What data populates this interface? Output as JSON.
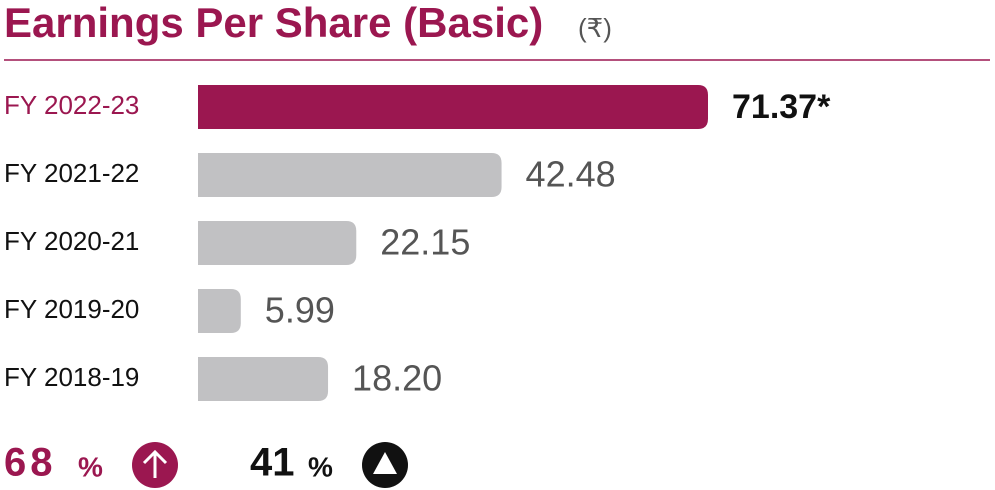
{
  "chart_data": {
    "type": "bar",
    "orientation": "horizontal",
    "title": "Earnings Per Share (Basic)",
    "subtitle": "(₹)",
    "categories": [
      "FY 2022-23",
      "FY 2021-22",
      "FY 2020-21",
      "FY 2019-20",
      "FY 2018-19"
    ],
    "values": [
      71.37,
      42.48,
      22.15,
      5.99,
      18.2
    ],
    "value_labels": [
      "71.37*",
      "42.48",
      "22.15",
      "5.99",
      "18.20"
    ],
    "colors": [
      "#9b1750",
      "#c1c1c3",
      "#c1c1c3",
      "#c1c1c3",
      "#c1c1c3"
    ],
    "highlight": 0,
    "annotations": [
      {
        "number": "68",
        "unit": "%"
      },
      {
        "number": "41",
        "unit": "%"
      }
    ]
  }
}
